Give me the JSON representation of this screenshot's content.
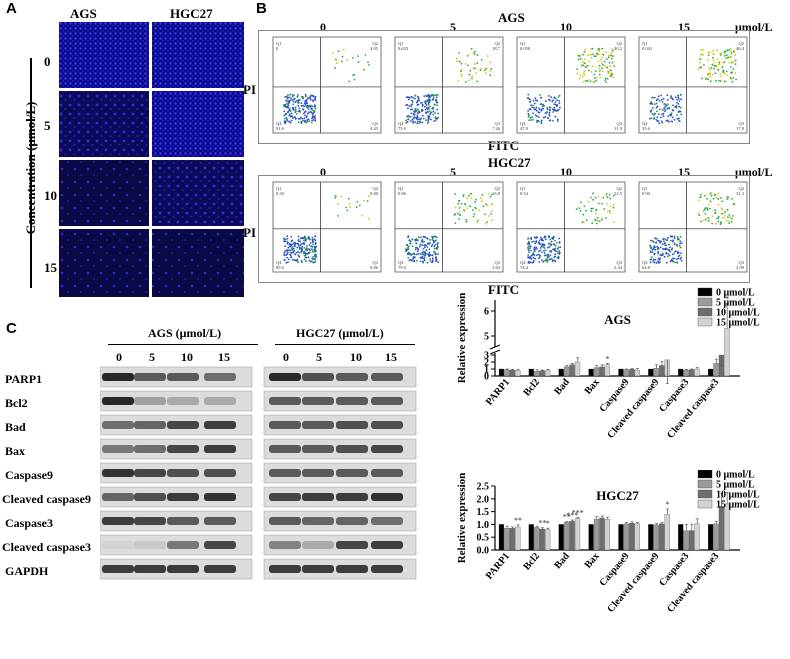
{
  "panels": {
    "a": "A",
    "b": "B",
    "c": "C"
  },
  "panel_a": {
    "cols": [
      "AGS",
      "HGC27"
    ],
    "rows": [
      "0",
      "5",
      "10",
      "15"
    ],
    "ylabel": "Concentration (μmol/L)"
  },
  "panel_b": {
    "ags_title": "AGS",
    "hgc_title": "HGC27",
    "conc": [
      "0",
      "5",
      "10",
      "15"
    ],
    "unit": "μmol/L",
    "ylabel": "PI",
    "xlabel": "FITC",
    "quad_names": [
      "Q1",
      "Q2",
      "Q4",
      "Q3"
    ],
    "ags_quads": [
      [
        "0",
        "4.05",
        "91.6",
        "4.45"
      ],
      [
        "0.633",
        "18.7",
        "75.0",
        "7.26"
      ],
      [
        "0.058",
        "40.2",
        "47.9",
        "11.9"
      ],
      [
        "0.041",
        "46.4",
        "35.6",
        "17.8"
      ]
    ],
    "hgc_quads": [
      [
        "0.30",
        "8.80",
        "89.6",
        "0.86"
      ],
      [
        "0.86",
        "16.8",
        "79.0",
        "3.63"
      ],
      [
        "0.54",
        "22.5",
        "74.4",
        "2.34"
      ],
      [
        "0.90",
        "31.3",
        "64.8",
        "2.99"
      ]
    ]
  },
  "panel_c": {
    "ags_header": "AGS (μmol/L)",
    "hgc_header": "HGC27 (μmol/L)",
    "lane_labels": [
      "0",
      "5",
      "10",
      "15"
    ],
    "proteins": [
      "PARP1",
      "Bcl2",
      "Bad",
      "Bax",
      "Caspase9",
      "Cleaved caspase9",
      "Caspase3",
      "Cleaved caspase3",
      "GAPDH"
    ]
  },
  "chart_data": [
    {
      "type": "bar",
      "title": "AGS",
      "ylabel": "Relative expression",
      "axis_break": true,
      "ylim": [
        0,
        7
      ],
      "yticks": [
        "0",
        "1",
        "2",
        "3",
        "5",
        "6"
      ],
      "categories": [
        "PARP1",
        "Bcl2",
        "Bad",
        "Bax",
        "Caspase9",
        "Cleaved caspase9",
        "Caspase3",
        "Cleaved caspase3"
      ],
      "series": [
        {
          "name": "0 μmol/L",
          "color": "#000000",
          "values": [
            1,
            1,
            1,
            1,
            1,
            1,
            1,
            1
          ],
          "errors": [
            0,
            0,
            0,
            0,
            0,
            0,
            0,
            0
          ]
        },
        {
          "name": "5 μmol/L",
          "color": "#9a9a9a",
          "values": [
            0.9,
            0.7,
            1.3,
            1.2,
            0.9,
            1.1,
            0.85,
            1.8
          ],
          "errors": [
            0.1,
            0.2,
            0.2,
            0.3,
            0.1,
            0.5,
            0.1,
            0.6
          ]
        },
        {
          "name": "10 μmol/L",
          "color": "#6e6e6e",
          "values": [
            0.85,
            0.75,
            1.6,
            1.3,
            0.95,
            1.5,
            0.9,
            3.0
          ],
          "errors": [
            0.1,
            0.1,
            0.2,
            0.3,
            0.1,
            0.6,
            0.1,
            0.8
          ]
        },
        {
          "name": "15 μmol/L",
          "color": "#d2d2d2",
          "values": [
            0.8,
            0.85,
            2.0,
            1.6,
            0.85,
            2.3,
            1.0,
            5.3
          ],
          "errors": [
            0.1,
            0.1,
            0.6,
            0.2,
            0.2,
            0.8,
            0.2,
            1.0
          ]
        }
      ],
      "annotations": [
        {
          "category": "Bax",
          "series": 3,
          "text": "*"
        },
        {
          "category": "Cleaved caspase3",
          "series": 3,
          "text": "*"
        }
      ],
      "legend": "top-right",
      "grid": false
    },
    {
      "type": "bar",
      "title": "HGC27",
      "ylabel": "Relative expression",
      "ylim": [
        0,
        2.5
      ],
      "yticks": [
        "0.0",
        "0.5",
        "1.0",
        "1.5",
        "2.0",
        "2.5"
      ],
      "categories": [
        "PARP1",
        "Bcl2",
        "Bad",
        "Bax",
        "Caspase9",
        "Cleaved caspase9",
        "Caspase3",
        "Cleaved caspase3"
      ],
      "series": [
        {
          "name": "0 μmol/L",
          "color": "#000000",
          "values": [
            1,
            1,
            1,
            1,
            1,
            1,
            1,
            1
          ],
          "errors": [
            0,
            0,
            0,
            0,
            0,
            0,
            0,
            0
          ]
        },
        {
          "name": "5 μmol/L",
          "color": "#9a9a9a",
          "values": [
            0.85,
            0.88,
            1.08,
            1.2,
            1.02,
            0.98,
            0.75,
            1.02
          ],
          "errors": [
            0.08,
            0.05,
            0.04,
            0.1,
            0.05,
            0.05,
            0.25,
            0.1
          ]
        },
        {
          "name": "10 μmol/L",
          "color": "#6e6e6e",
          "values": [
            0.85,
            0.82,
            1.12,
            1.25,
            1.05,
            1.02,
            0.76,
            1.7
          ],
          "errors": [
            0.05,
            0.05,
            0.05,
            0.08,
            0.05,
            0.05,
            0.25,
            0.5
          ]
        },
        {
          "name": "15 μmol/L",
          "color": "#d2d2d2",
          "values": [
            0.9,
            0.8,
            1.22,
            1.2,
            1.02,
            1.4,
            1.02,
            1.8
          ],
          "errors": [
            0.08,
            0.05,
            0.05,
            0.08,
            0.05,
            0.2,
            0.2,
            0.45
          ]
        }
      ],
      "annotations": [
        {
          "category": "PARP1",
          "series": 3,
          "text": "**"
        },
        {
          "category": "Bcl2",
          "series": 2,
          "text": "**"
        },
        {
          "category": "Bcl2",
          "series": 3,
          "text": "*"
        },
        {
          "category": "Bad",
          "series": 1,
          "text": "**"
        },
        {
          "category": "Bad",
          "series": 2,
          "text": "***"
        },
        {
          "category": "Bad",
          "series": 3,
          "text": "***"
        },
        {
          "category": "Cleaved caspase9",
          "series": 3,
          "text": "*"
        }
      ],
      "legend": "top-right",
      "grid": false
    }
  ]
}
